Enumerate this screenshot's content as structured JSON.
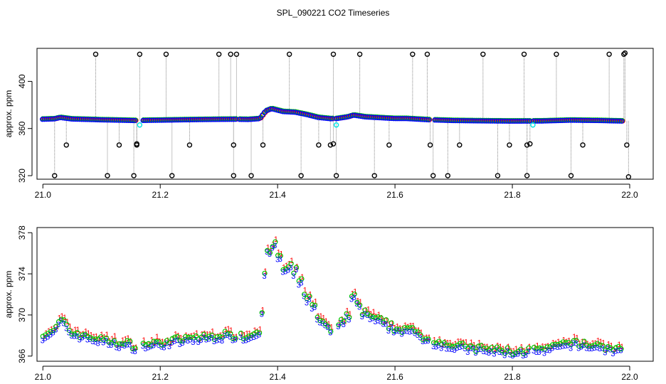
{
  "title": "SPL_090221  CO2 Timeseries",
  "chart_data": [
    {
      "type": "scatter",
      "ylabel": "approx. ppm",
      "xlim": [
        20.99,
        22.04
      ],
      "ylim": [
        317,
        428
      ],
      "xticks": [
        "21.0",
        "21.2",
        "21.4",
        "21.6",
        "21.8",
        "22.0"
      ],
      "yticks": [
        "320",
        "360",
        "400"
      ],
      "grid": false,
      "colors": {
        "series1": "#ff0000",
        "series2": "#00c800",
        "series3": "#0000ff",
        "flagged": "#000000",
        "interp": "#00e5e5",
        "connector": "#888888"
      },
      "baseline_series": {
        "x": [
          21.0,
          21.02,
          21.03,
          21.05,
          21.08,
          21.1,
          21.13,
          21.15,
          21.16,
          21.17,
          21.2,
          21.25,
          21.3,
          21.33,
          21.35,
          21.37,
          21.38,
          21.39,
          21.41,
          21.43,
          21.45,
          21.47,
          21.49,
          21.5,
          21.52,
          21.53,
          21.55,
          21.6,
          21.62,
          21.66,
          21.7,
          21.75,
          21.8,
          21.85,
          21.9,
          21.95,
          21.99
        ],
        "y": [
          368.0,
          368.3,
          369.5,
          368.2,
          367.8,
          367.5,
          367.2,
          367.0,
          366.9,
          367.0,
          367.2,
          367.6,
          367.9,
          368.0,
          367.8,
          368.5,
          375.0,
          377.0,
          374.5,
          374.0,
          372.0,
          369.5,
          368.5,
          368.5,
          370.0,
          371.5,
          370.0,
          368.6,
          368.6,
          367.5,
          366.9,
          366.6,
          366.4,
          366.5,
          367.2,
          366.9,
          366.4
        ]
      },
      "outliers": {
        "x": [
          21.02,
          21.04,
          21.09,
          21.11,
          21.13,
          21.155,
          21.16,
          21.16,
          21.165,
          21.21,
          21.22,
          21.25,
          21.3,
          21.32,
          21.325,
          21.325,
          21.33,
          21.355,
          21.375,
          21.42,
          21.44,
          21.47,
          21.49,
          21.495,
          21.495,
          21.5,
          21.54,
          21.565,
          21.59,
          21.63,
          21.655,
          21.66,
          21.665,
          21.69,
          21.71,
          21.75,
          21.775,
          21.795,
          21.82,
          21.825,
          21.825,
          21.83,
          21.875,
          21.9,
          21.92,
          21.965,
          21.99,
          21.992,
          21.995,
          21.998
        ],
        "y": [
          320,
          346,
          423,
          320,
          346,
          320,
          346,
          347,
          423,
          423,
          320,
          346,
          423,
          423,
          320,
          346,
          423,
          320,
          346,
          423,
          320,
          346,
          346,
          347,
          423,
          320,
          423,
          320,
          346,
          423,
          423,
          346,
          320,
          320,
          346,
          423,
          320,
          346,
          423,
          320,
          346,
          347,
          423,
          320,
          346,
          423,
          423,
          424,
          346,
          319
        ]
      },
      "interpolated": {
        "x": [
          21.165,
          21.5,
          21.835
        ],
        "y": [
          363,
          363,
          363
        ]
      }
    },
    {
      "type": "scatter",
      "ylabel": "approx. ppm",
      "xlim": [
        20.99,
        22.04
      ],
      "ylim": [
        365.5,
        378.5
      ],
      "xticks": [
        "21.0",
        "21.2",
        "21.4",
        "21.6",
        "21.8",
        "22.0"
      ],
      "yticks": [
        "366",
        "370",
        "374",
        "378"
      ],
      "grid": false,
      "series": [
        {
          "name": "1",
          "color": "#ff0000",
          "marker": "1"
        },
        {
          "name": "2",
          "color": "#00c800",
          "marker": "o"
        },
        {
          "name": "3",
          "color": "#0000ff",
          "marker": "3"
        }
      ],
      "x": [
        21.0,
        21.02,
        21.03,
        21.05,
        21.08,
        21.1,
        21.13,
        21.15,
        21.16,
        21.17,
        21.2,
        21.25,
        21.3,
        21.33,
        21.35,
        21.37,
        21.38,
        21.39,
        21.41,
        21.43,
        21.45,
        21.47,
        21.49,
        21.5,
        21.52,
        21.53,
        21.55,
        21.6,
        21.62,
        21.66,
        21.7,
        21.75,
        21.8,
        21.85,
        21.9,
        21.95,
        21.99
      ],
      "y": [
        368.0,
        368.3,
        369.5,
        368.2,
        367.8,
        367.5,
        367.2,
        367.0,
        366.9,
        367.0,
        367.2,
        367.6,
        367.9,
        368.0,
        367.8,
        368.5,
        375.0,
        377.0,
        374.5,
        374.0,
        372.0,
        369.5,
        368.5,
        368.5,
        370.0,
        371.5,
        370.0,
        368.6,
        368.6,
        367.5,
        366.9,
        366.6,
        366.4,
        366.5,
        367.2,
        366.9,
        366.4
      ]
    }
  ]
}
